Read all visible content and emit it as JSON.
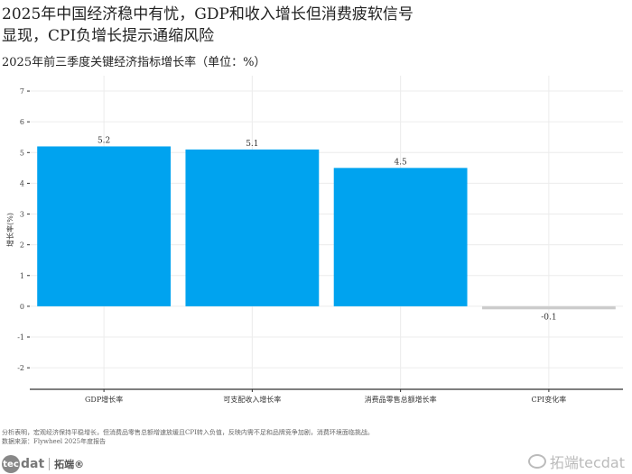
{
  "title": "2025年中国经济稳中有忧，GDP和收入增长但消费疲软信号显现，CPI负增长提示通缩风险",
  "subtitle": "2025年前三季度关键经济指标增长率（单位：%）",
  "caption": {
    "analysis": "分析表明，宏观经济保持平稳增长，但消费品零售总额增速放缓且CPI转入负值，反映内需不足和品牌竞争加剧，消费环境面临挑战。",
    "source": "数据来源：Flywheel 2025年度报告"
  },
  "logo": {
    "circle": "tec",
    "dat": "dat",
    "cn": "拓端®"
  },
  "watermark": "拓端tecdat",
  "chart_data": {
    "type": "bar",
    "categories": [
      "GDP增长率",
      "可支配收入增长率",
      "消费品零售总额增长率",
      "CPI变化率"
    ],
    "values": [
      5.2,
      5.1,
      4.5,
      -0.1
    ],
    "data_labels": [
      "5.2",
      "5.1",
      "4.5",
      "-0.1"
    ],
    "colors": [
      "#00a3ef",
      "#00a3ef",
      "#00a3ef",
      "#cccccc"
    ],
    "title": "",
    "xlabel": "",
    "ylabel": "增长率(%)",
    "ylim": [
      -2.7,
      7.5
    ],
    "yticks": [
      -2,
      -1,
      0,
      1,
      2,
      3,
      4,
      5,
      6,
      7
    ],
    "grid": true
  }
}
